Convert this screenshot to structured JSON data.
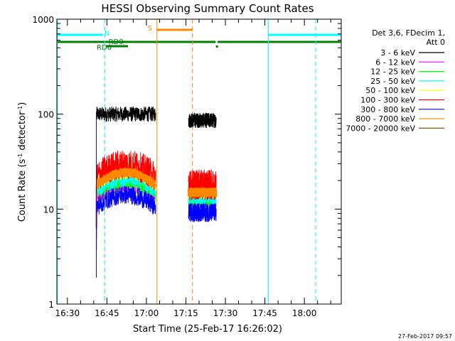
{
  "chart_data": {
    "type": "line",
    "title": "HESSI Observing Summary Count Rates",
    "xlabel": "Start Time (25-Feb-17 16:26:02)",
    "ylabel_main": "Count Rate (s",
    "ylabel_sup1": "-1",
    "ylabel_mid": " detector",
    "ylabel_sup2": "-1",
    "ylabel_end": ")",
    "yscale": "log",
    "xlim_minutes": [
      986,
      1094
    ],
    "ylim": [
      1,
      1000
    ],
    "x_ticks": [
      {
        "label": "16:30",
        "minutes": 990
      },
      {
        "label": "16:45",
        "minutes": 1005
      },
      {
        "label": "17:00",
        "minutes": 1020
      },
      {
        "label": "17:15",
        "minutes": 1035
      },
      {
        "label": "17:30",
        "minutes": 1050
      },
      {
        "label": "17:45",
        "minutes": 1065
      },
      {
        "label": "18:00",
        "minutes": 1080
      }
    ],
    "y_ticks": [
      {
        "label": "1",
        "value": 1
      },
      {
        "label": "10",
        "value": 10
      },
      {
        "label": "100",
        "value": 100
      },
      {
        "label": "1000",
        "value": 1000
      }
    ],
    "legend_header": [
      "Det 3,6, FDecim 1,",
      "Att 0"
    ],
    "legend_placement": "right",
    "segments_minutes": [
      [
        1001,
        1023.5
      ],
      [
        1036,
        1046.5
      ]
    ],
    "series": [
      {
        "name": "3 - 6 keV",
        "color": "#000000",
        "levels": [
          100,
          86
        ],
        "noise": 0.08
      },
      {
        "name": "6 - 12 keV",
        "color": "#ff00ff",
        "levels": [
          14,
          13
        ],
        "noise": 0.1
      },
      {
        "name": "12 - 25 keV",
        "color": "#00ff00",
        "levels": [
          15,
          13
        ],
        "noise": 0.1
      },
      {
        "name": "25 - 50 keV",
        "color": "#00ffff",
        "levels": [
          16,
          14
        ],
        "noise": 0.1
      },
      {
        "name": "50 - 100 keV",
        "color": "#ffff00",
        "levels": [
          19,
          16
        ],
        "noise": 0.1
      },
      {
        "name": "100 - 300 keV",
        "color": "#ff0000",
        "levels": [
          22,
          18
        ],
        "noise": 0.16
      },
      {
        "name": "300 - 800 keV",
        "color": "#0000ff",
        "levels": [
          10.5,
          9.2
        ],
        "noise": 0.1
      },
      {
        "name": "800 - 7000 keV",
        "color": "#ff8800",
        "levels": [
          18,
          15
        ],
        "noise": 0.05
      },
      {
        "name": "7000 - 20000 keV",
        "color": "#885500",
        "levels": [
          0,
          0
        ],
        "noise": 0
      }
    ],
    "vertical_markers": [
      {
        "minutes": 986.2,
        "color": "#00ffff",
        "style": "solid"
      },
      {
        "minutes": 1004.2,
        "color": "#00ffff",
        "style": "dashed"
      },
      {
        "minutes": 1066.3,
        "color": "#00ffff",
        "style": "solid"
      },
      {
        "minutes": 1084.3,
        "color": "#00ffff",
        "style": "dashed"
      },
      {
        "minutes": 1024,
        "color": "#ff8800",
        "style": "solid"
      },
      {
        "minutes": 1037.5,
        "color": "#ff8800",
        "style": "dashed"
      }
    ],
    "flag_bars": [
      {
        "label": "N",
        "color": "#00ffff",
        "ranges": [
          [
            986,
            1003.5
          ],
          [
            1066.3,
            1093.8
          ]
        ],
        "level": 1
      },
      {
        "label": "S",
        "color": "#ff8800",
        "ranges": [
          [
            1024,
            1037.6
          ]
        ],
        "level": 0
      },
      {
        "label": "RD0",
        "color": "#008000",
        "ranges": [
          [
            986,
            1046.3
          ],
          [
            1047,
            1093.8
          ]
        ],
        "level": 2
      },
      {
        "label": "RD6",
        "color": "#008000",
        "ranges": [
          [
            1004.7,
            1013
          ]
        ],
        "level": 3
      }
    ],
    "footer_date": "27-Feb-2017 09:57"
  }
}
